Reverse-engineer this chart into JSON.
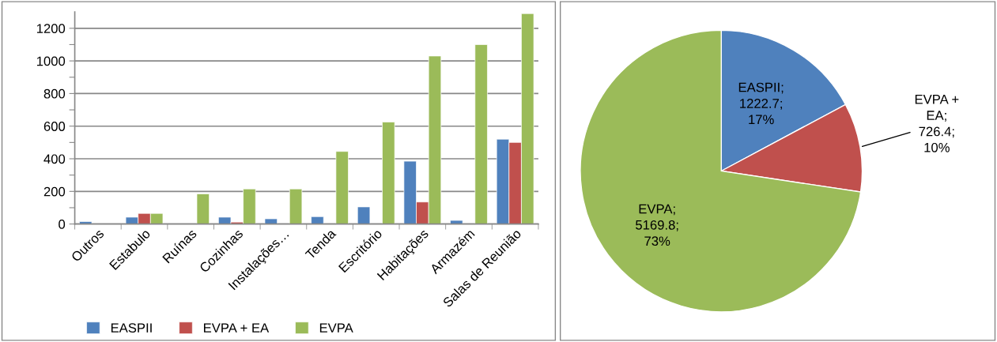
{
  "chart_data": [
    {
      "type": "bar",
      "categories": [
        "Outros",
        "Estabulo",
        "Ruínas",
        "Cozinhas",
        "Instalações…",
        "Tenda",
        "Escritório",
        "Habitações",
        "Armazém",
        "Salas de Reunião"
      ],
      "series": [
        {
          "name": "EASPII",
          "color": "#4f81bd",
          "values": [
            15,
            42,
            null,
            42,
            32,
            45,
            105,
            385,
            22,
            520
          ]
        },
        {
          "name": "EVPA + EA",
          "color": "#c0504d",
          "values": [
            null,
            65,
            null,
            12,
            null,
            null,
            null,
            135,
            null,
            500
          ]
        },
        {
          "name": "EVPA",
          "color": "#9bbb59",
          "values": [
            null,
            65,
            185,
            215,
            215,
            445,
            625,
            1030,
            1100,
            1290
          ]
        }
      ],
      "ylim": [
        0,
        1300
      ],
      "yticks": [
        0,
        {
          "value": 100,
          "label": null
        },
        200,
        {
          "value": 300,
          "label": null
        },
        400,
        {
          "value": 500,
          "label": null
        },
        600,
        {
          "value": 700,
          "label": null
        },
        800,
        {
          "value": 900,
          "label": null
        },
        1000,
        {
          "value": 1100,
          "label": null
        },
        1200
      ],
      "grid": "y",
      "legend": "bottom"
    },
    {
      "type": "pie",
      "categories": [
        "EASPII",
        "EVPA + EA",
        "EVPA"
      ],
      "values": [
        1222.7,
        726.4,
        5169.8
      ],
      "colors": [
        "#4f81bd",
        "#c0504d",
        "#9bbb59"
      ],
      "value_labels": [
        ";\n1222.7;\n17%",
        ";\n726.4;\n10%",
        ";\n5169.8;\n73%"
      ]
    }
  ]
}
